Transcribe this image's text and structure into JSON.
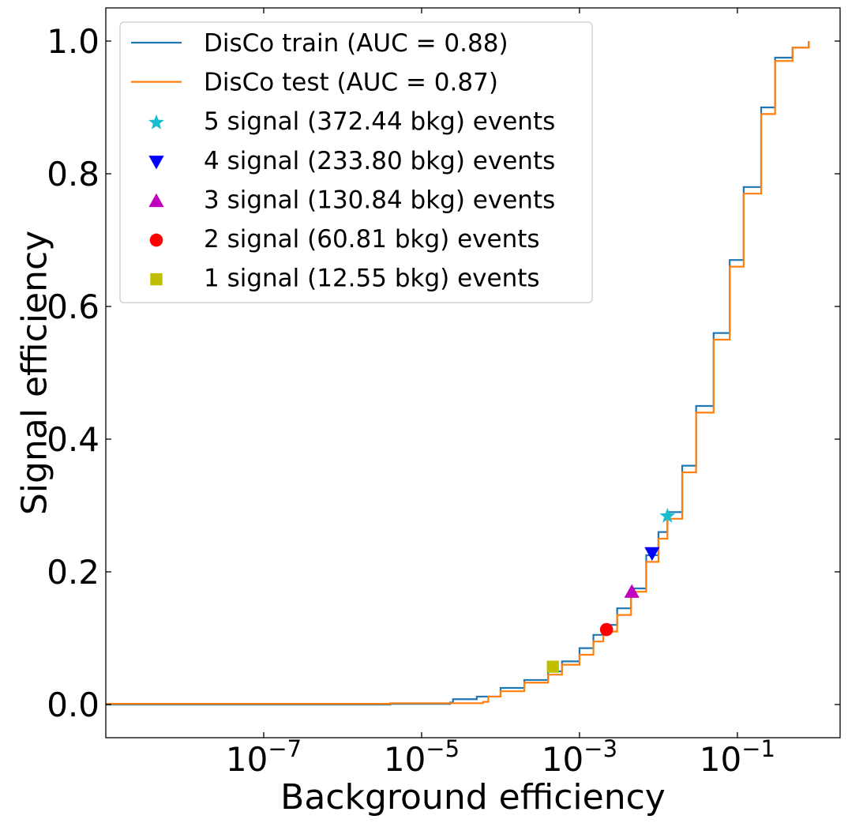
{
  "chart_data": {
    "type": "line",
    "title": "",
    "xlabel": "Background efficiency",
    "ylabel": "Signal efficiency",
    "xscale": "log",
    "xlim": [
      1e-09,
      2
    ],
    "ylim": [
      -0.05,
      1.05
    ],
    "x_ticks": [
      {
        "value": 1e-07,
        "base": "10",
        "exp": "−7"
      },
      {
        "value": 1e-05,
        "base": "10",
        "exp": "−5"
      },
      {
        "value": 0.001,
        "base": "10",
        "exp": "−3"
      },
      {
        "value": 0.1,
        "base": "10",
        "exp": "−1"
      }
    ],
    "y_ticks": [
      {
        "value": 0.0,
        "label": "0.0"
      },
      {
        "value": 0.2,
        "label": "0.2"
      },
      {
        "value": 0.4,
        "label": "0.4"
      },
      {
        "value": 0.6,
        "label": "0.6"
      },
      {
        "value": 0.8,
        "label": "0.8"
      },
      {
        "value": 1.0,
        "label": "1.0"
      }
    ],
    "grid": false,
    "legend_position": "top-left",
    "series": [
      {
        "name": "DisCo train (AUC = 0.88)",
        "color": "#1f77b4",
        "x": [
          1e-09,
          4e-06,
          2.3e-05,
          2.5e-05,
          5e-05,
          0.0001,
          0.0002,
          0.0004,
          0.0006,
          0.001,
          0.0015,
          0.002,
          0.003,
          0.0045,
          0.007,
          0.01,
          0.013,
          0.02,
          0.03,
          0.05,
          0.08,
          0.12,
          0.2,
          0.3,
          0.5,
          0.8
        ],
        "y": [
          0.0,
          0.001,
          0.003,
          0.008,
          0.012,
          0.025,
          0.037,
          0.05,
          0.065,
          0.085,
          0.105,
          0.12,
          0.145,
          0.175,
          0.225,
          0.26,
          0.29,
          0.36,
          0.45,
          0.56,
          0.67,
          0.78,
          0.9,
          0.975,
          0.99,
          1.0
        ]
      },
      {
        "name": "DisCo test (AUC = 0.87)",
        "color": "#ff7f0e",
        "x": [
          1e-09,
          4e-06,
          6e-05,
          7e-05,
          0.0001,
          0.0002,
          0.0004,
          0.0006,
          0.001,
          0.0015,
          0.002,
          0.003,
          0.0045,
          0.007,
          0.01,
          0.013,
          0.02,
          0.03,
          0.05,
          0.08,
          0.12,
          0.2,
          0.3,
          0.5,
          0.8
        ],
        "y": [
          0.001,
          0.002,
          0.004,
          0.012,
          0.02,
          0.033,
          0.045,
          0.06,
          0.075,
          0.095,
          0.11,
          0.135,
          0.17,
          0.215,
          0.25,
          0.28,
          0.35,
          0.44,
          0.55,
          0.66,
          0.77,
          0.89,
          0.97,
          0.99,
          1.0
        ]
      }
    ],
    "points": [
      {
        "name": "5 signal (372.44 bkg) events",
        "marker": "star",
        "color": "#17becf",
        "x": 0.013,
        "y": 0.284
      },
      {
        "name": "4 signal (233.80 bkg) events",
        "marker": "triangle-down",
        "color": "#0000ff",
        "x": 0.0083,
        "y": 0.228
      },
      {
        "name": "3 signal (130.84 bkg) events",
        "marker": "triangle-up",
        "color": "#bf00bf",
        "x": 0.0046,
        "y": 0.17
      },
      {
        "name": "2 signal (60.81 bkg) events",
        "marker": "circle",
        "color": "#ff0000",
        "x": 0.0022,
        "y": 0.113
      },
      {
        "name": "1 signal (12.55 bkg) events",
        "marker": "square",
        "color": "#bfbf00",
        "x": 0.00046,
        "y": 0.057
      }
    ]
  }
}
